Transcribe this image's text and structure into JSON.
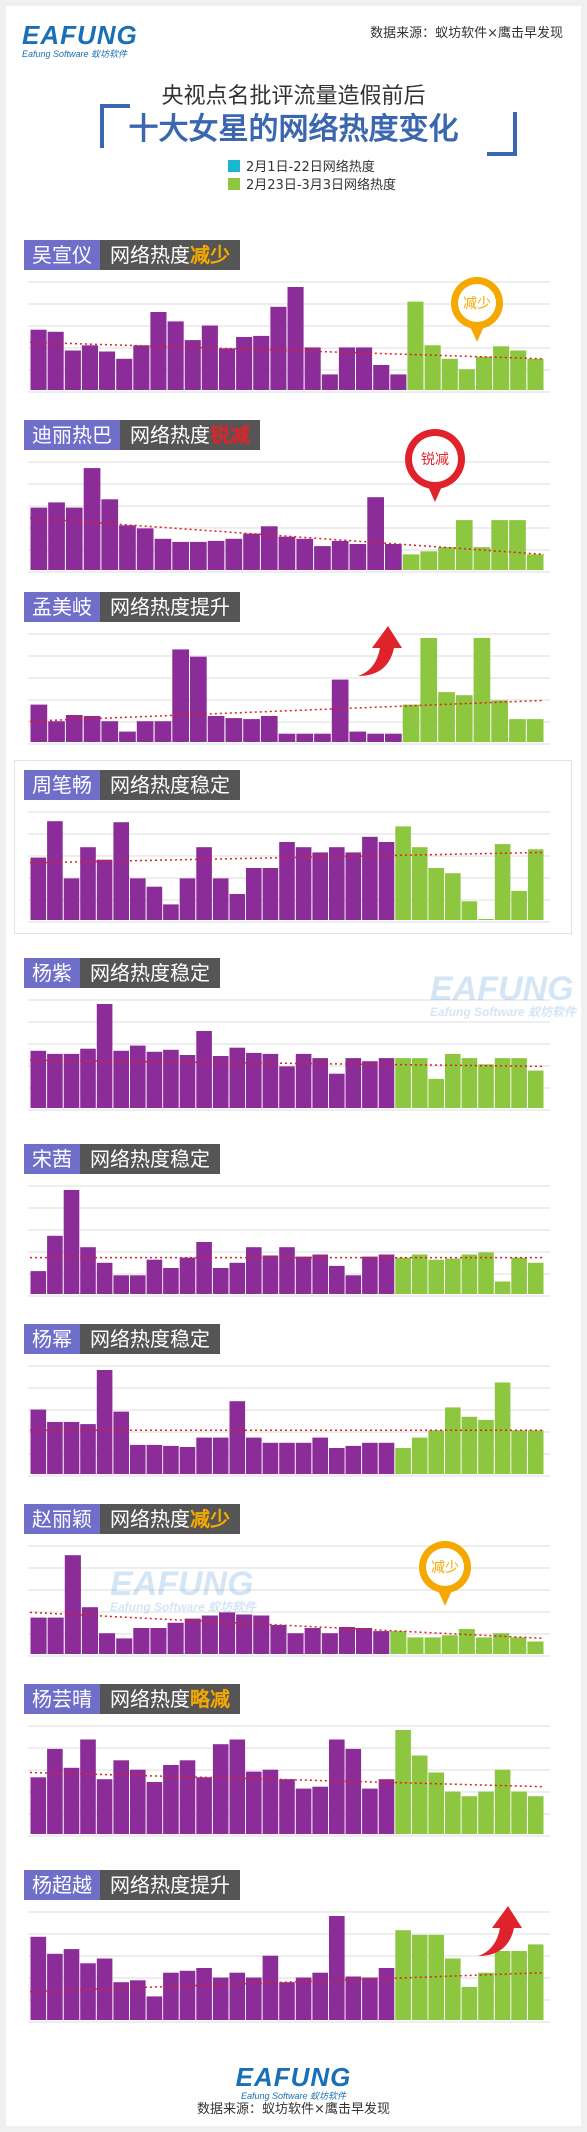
{
  "header": {
    "logo": "EAFUNG",
    "logo_sub": "Eafung Software 蚁坊软件",
    "source": "数据来源：蚁坊软件×鹰击早发现",
    "title_line1": "央视点名批评流量造假前后",
    "title_line2": "十大女星的网络热度变化"
  },
  "legend": [
    {
      "label": "2月1日-22日网络热度",
      "color": "#1ab6d0"
    },
    {
      "label": "2月23日-3月3日网络热度",
      "color": "#8dc63f"
    }
  ],
  "colors": {
    "before": "#8b2c99",
    "after": "#8dc63f",
    "trend": "#e02020",
    "label_bg": "#6f6ec9",
    "tag_bg": "#555555",
    "yellow": "#f5a800",
    "red": "#e0222b"
  },
  "panels": [
    {
      "name": "吴宣仪",
      "tag": "网络热度",
      "tag_hl": "减少",
      "hl_color": "#f5a800",
      "badge": "减少",
      "badge_type": "pin-yellow"
    },
    {
      "name": "迪丽热巴",
      "tag": "网络热度",
      "tag_hl": "锐减",
      "hl_color": "#e0222b",
      "badge": "锐减",
      "badge_type": "pin-red"
    },
    {
      "name": "孟美岐",
      "tag": "网络热度提升",
      "tag_hl": "",
      "hl_color": "#ffffff",
      "badge": "",
      "badge_type": "arrow-up"
    },
    {
      "name": "周笔畅",
      "tag": "网络热度稳定",
      "tag_hl": "",
      "hl_color": "#ffffff",
      "badge": "",
      "badge_type": "none"
    },
    {
      "name": "杨紫",
      "tag": "网络热度稳定",
      "tag_hl": "",
      "hl_color": "#ffffff",
      "badge": "",
      "badge_type": "none"
    },
    {
      "name": "宋茜",
      "tag": "网络热度稳定",
      "tag_hl": "",
      "hl_color": "#ffffff",
      "badge": "",
      "badge_type": "none"
    },
    {
      "name": "杨幂",
      "tag": "网络热度稳定",
      "tag_hl": "",
      "hl_color": "#ffffff",
      "badge": "",
      "badge_type": "none"
    },
    {
      "name": "赵丽颖",
      "tag": "网络热度",
      "tag_hl": "减少",
      "hl_color": "#f5a800",
      "badge": "减少",
      "badge_type": "pin-yellow"
    },
    {
      "name": "杨芸晴",
      "tag": "网络热度",
      "tag_hl": "略减",
      "hl_color": "#f5a800",
      "badge": "",
      "badge_type": "none"
    },
    {
      "name": "杨超越",
      "tag": "网络热度提升",
      "tag_hl": "",
      "hl_color": "#ffffff",
      "badge": "",
      "badge_type": "arrow-up"
    }
  ],
  "chart_data": [
    {
      "type": "bar",
      "series_name": "吴宣仪",
      "values": [
        58,
        56,
        38,
        43,
        37,
        30,
        43,
        75,
        66,
        48,
        62,
        40,
        51,
        52,
        80,
        99,
        41,
        15,
        41,
        41,
        24,
        15,
        85,
        43,
        30,
        20,
        32,
        42,
        38,
        30
      ],
      "before_count": 22,
      "trend": [
        46,
        30
      ]
    },
    {
      "type": "bar",
      "series_name": "迪丽热巴",
      "values": [
        60,
        65,
        60,
        98,
        68,
        43,
        40,
        30,
        27,
        27,
        28,
        30,
        35,
        42,
        32,
        30,
        23,
        28,
        25,
        70,
        25,
        15,
        18,
        22,
        48,
        22,
        48,
        48,
        15
      ],
      "before_count": 21,
      "trend": [
        50,
        15
      ]
    },
    {
      "type": "bar",
      "series_name": "孟美岐",
      "values": [
        36,
        20,
        26,
        25,
        20,
        10,
        20,
        20,
        89,
        82,
        25,
        23,
        22,
        25,
        8,
        8,
        8,
        60,
        10,
        8,
        8,
        36,
        100,
        48,
        45,
        100,
        40,
        22,
        22
      ],
      "before_count": 21,
      "trend": [
        20,
        40
      ]
    },
    {
      "type": "bar",
      "series_name": "周笔畅",
      "values": [
        60,
        95,
        40,
        70,
        58,
        94,
        40,
        32,
        15,
        40,
        70,
        40,
        25,
        50,
        50,
        75,
        70,
        65,
        70,
        65,
        80,
        75,
        90,
        70,
        50,
        45,
        18,
        0,
        73,
        28,
        68
      ],
      "before_count": 22,
      "trend": [
        55,
        65
      ]
    },
    {
      "type": "bar",
      "series_name": "杨紫",
      "values": [
        55,
        52,
        52,
        57,
        100,
        55,
        60,
        54,
        56,
        51,
        74,
        50,
        58,
        53,
        52,
        40,
        52,
        48,
        33,
        48,
        45,
        48,
        48,
        48,
        28,
        52,
        48,
        42,
        48,
        48,
        36
      ],
      "before_count": 22,
      "trend": [
        46,
        40
      ]
    },
    {
      "type": "bar",
      "series_name": "宋茜",
      "values": [
        22,
        56,
        100,
        45,
        30,
        18,
        18,
        33,
        25,
        35,
        50,
        25,
        30,
        45,
        37,
        45,
        36,
        38,
        27,
        18,
        36,
        38,
        35,
        38,
        33,
        34,
        38,
        40,
        12,
        35,
        30
      ],
      "before_count": 22,
      "trend": [
        35,
        35
      ]
    },
    {
      "type": "bar",
      "series_name": "杨幂",
      "values": [
        62,
        50,
        50,
        48,
        100,
        60,
        28,
        28,
        27,
        26,
        35,
        35,
        70,
        35,
        30,
        30,
        30,
        35,
        25,
        27,
        30,
        30,
        25,
        35,
        42,
        64,
        55,
        52,
        88,
        42,
        42
      ],
      "before_count": 22,
      "trend": [
        42,
        42
      ]
    },
    {
      "type": "bar",
      "series_name": "赵丽颖",
      "values": [
        35,
        35,
        95,
        45,
        20,
        15,
        25,
        25,
        30,
        34,
        37,
        40,
        38,
        37,
        28,
        20,
        25,
        20,
        26,
        25,
        22,
        22,
        16,
        16,
        18,
        24,
        16,
        20,
        16,
        12
      ],
      "before_count": 21,
      "trend": [
        40,
        15
      ]
    },
    {
      "type": "bar",
      "series_name": "杨芸晴",
      "values": [
        60,
        90,
        70,
        100,
        58,
        78,
        68,
        55,
        73,
        78,
        60,
        95,
        100,
        66,
        68,
        58,
        48,
        50,
        100,
        90,
        48,
        58,
        110,
        83,
        65,
        45,
        40,
        45,
        68,
        45,
        40
      ],
      "before_count": 22,
      "trend": [
        65,
        50
      ]
    },
    {
      "type": "bar",
      "series_name": "杨超越",
      "values": [
        88,
        70,
        75,
        60,
        65,
        40,
        42,
        25,
        50,
        52,
        55,
        45,
        50,
        45,
        68,
        40,
        45,
        50,
        110,
        46,
        45,
        55,
        95,
        90,
        90,
        65,
        35,
        50,
        73,
        73,
        80
      ],
      "before_count": 22,
      "trend": [
        30,
        50
      ]
    }
  ],
  "footer": {
    "logo": "EAFUNG",
    "logo_sub": "Eafung Software 蚁坊软件",
    "source": "数据来源：蚁坊软件×鹰击早发现"
  },
  "watermark": {
    "text": "EAFUNG",
    "sub": "Eafung Software 蚁坊软件"
  }
}
